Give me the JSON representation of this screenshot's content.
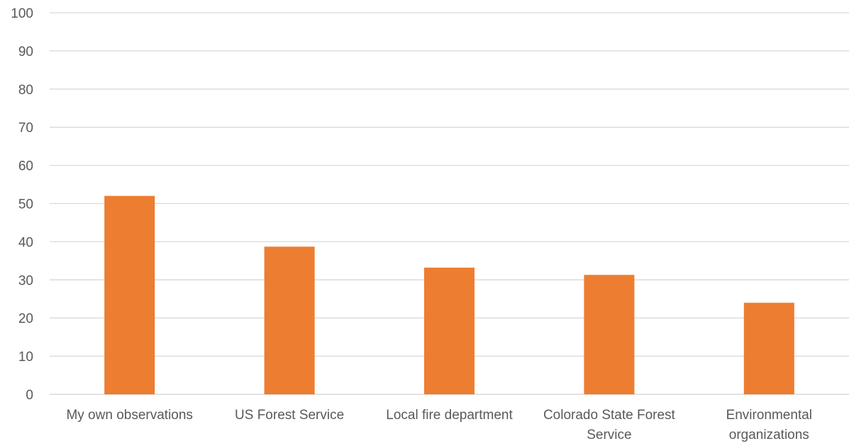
{
  "chart_data": {
    "type": "bar",
    "title": "",
    "xlabel": "",
    "ylabel": "",
    "categories": [
      [
        "My own observations"
      ],
      [
        "US Forest Service"
      ],
      [
        "Local fire department"
      ],
      [
        "Colorado State Forest",
        "Service"
      ],
      [
        "Environmental",
        "organizations"
      ]
    ],
    "values": [
      52,
      38.7,
      33.2,
      31.3,
      24
    ],
    "ylim": [
      0,
      100
    ],
    "yticks": [
      "0",
      "10",
      "20",
      "30",
      "40",
      "50",
      "60",
      "70",
      "80",
      "90",
      "100"
    ],
    "grid": true,
    "legend": "none",
    "colors": {
      "bar": "#ED7D31",
      "grid": "#D9D9D9",
      "text": "#595959"
    }
  }
}
